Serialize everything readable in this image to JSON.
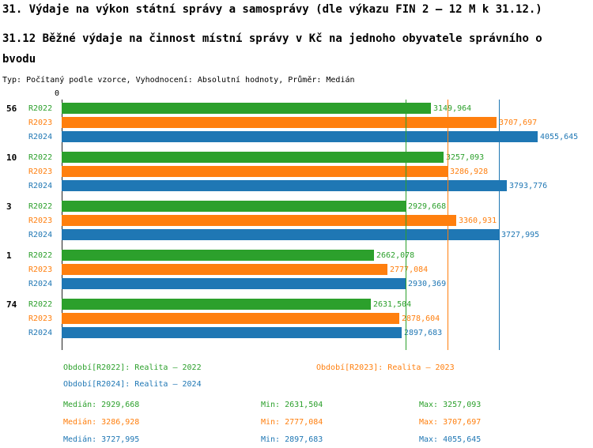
{
  "header": {
    "title": "31. Výdaje na výkon státní správy a samosprávy (dle výkazu FIN 2 – 12 M k 31.12.)",
    "subtitle_line1": "31.12 Běžné výdaje na činnost místní správy v Kč na jednoho obyvatele správního o",
    "subtitle_line2": "bvodu",
    "meta": "Typ: Počítaný podle vzorce, Vyhodnocení: Absolutní hodnoty, Průměr: Medián"
  },
  "colors": {
    "r2022": "#2ca02c",
    "r2023": "#ff7f0e",
    "r2024": "#1f77b4",
    "axis": "#222222"
  },
  "axis": {
    "zero_label": "0"
  },
  "chart_data": {
    "type": "bar",
    "orientation": "horizontal",
    "title": "31.12 Běžné výdaje na činnost místní správy v Kč na jednoho obyvatele správního obvodu",
    "categories": [
      "56",
      "10",
      "3",
      "1",
      "74"
    ],
    "series": [
      {
        "name": "R2022",
        "color_key": "r2022",
        "values": [
          3149.964,
          3257.093,
          2929.668,
          2662.078,
          2631.504
        ],
        "labels": [
          "3149,964",
          "3257,093",
          "2929,668",
          "2662,078",
          "2631,504"
        ]
      },
      {
        "name": "R2023",
        "color_key": "r2023",
        "values": [
          3707.697,
          3286.928,
          3360.931,
          2777.084,
          2878.604
        ],
        "labels": [
          "3707,697",
          "3286,928",
          "3360,931",
          "2777,084",
          "2878,604"
        ]
      },
      {
        "name": "R2024",
        "color_key": "r2024",
        "values": [
          4055.645,
          3793.776,
          3727.995,
          2930.369,
          2897.683
        ],
        "labels": [
          "4055,645",
          "3793,776",
          "3727,995",
          "2930,369",
          "2897,683"
        ]
      }
    ],
    "medians": [
      {
        "series": "R2022",
        "color_key": "r2022",
        "value": 2929.668
      },
      {
        "series": "R2023",
        "color_key": "r2023",
        "value": 3286.928
      },
      {
        "series": "R2024",
        "color_key": "r2024",
        "value": 3727.995
      }
    ],
    "xlim": [
      0,
      4400
    ],
    "grid": false,
    "legend_position": "bottom"
  },
  "legend": [
    {
      "label": "Období[R2022]: Realita – 2022",
      "color_key": "r2022"
    },
    {
      "label": "Období[R2023]: Realita – 2023",
      "color_key": "r2023"
    },
    {
      "label": "Období[R2024]: Realita – 2024",
      "color_key": "r2024"
    }
  ],
  "stats": [
    {
      "median": "Medián: 2929,668",
      "min": "Min: 2631,504",
      "max": "Max: 3257,093",
      "color_key": "r2022"
    },
    {
      "median": "Medián: 3286,928",
      "min": "Min: 2777,084",
      "max": "Max: 3707,697",
      "color_key": "r2023"
    },
    {
      "median": "Medián: 3727,995",
      "min": "Min: 2897,683",
      "max": "Max: 4055,645",
      "color_key": "r2024"
    }
  ]
}
